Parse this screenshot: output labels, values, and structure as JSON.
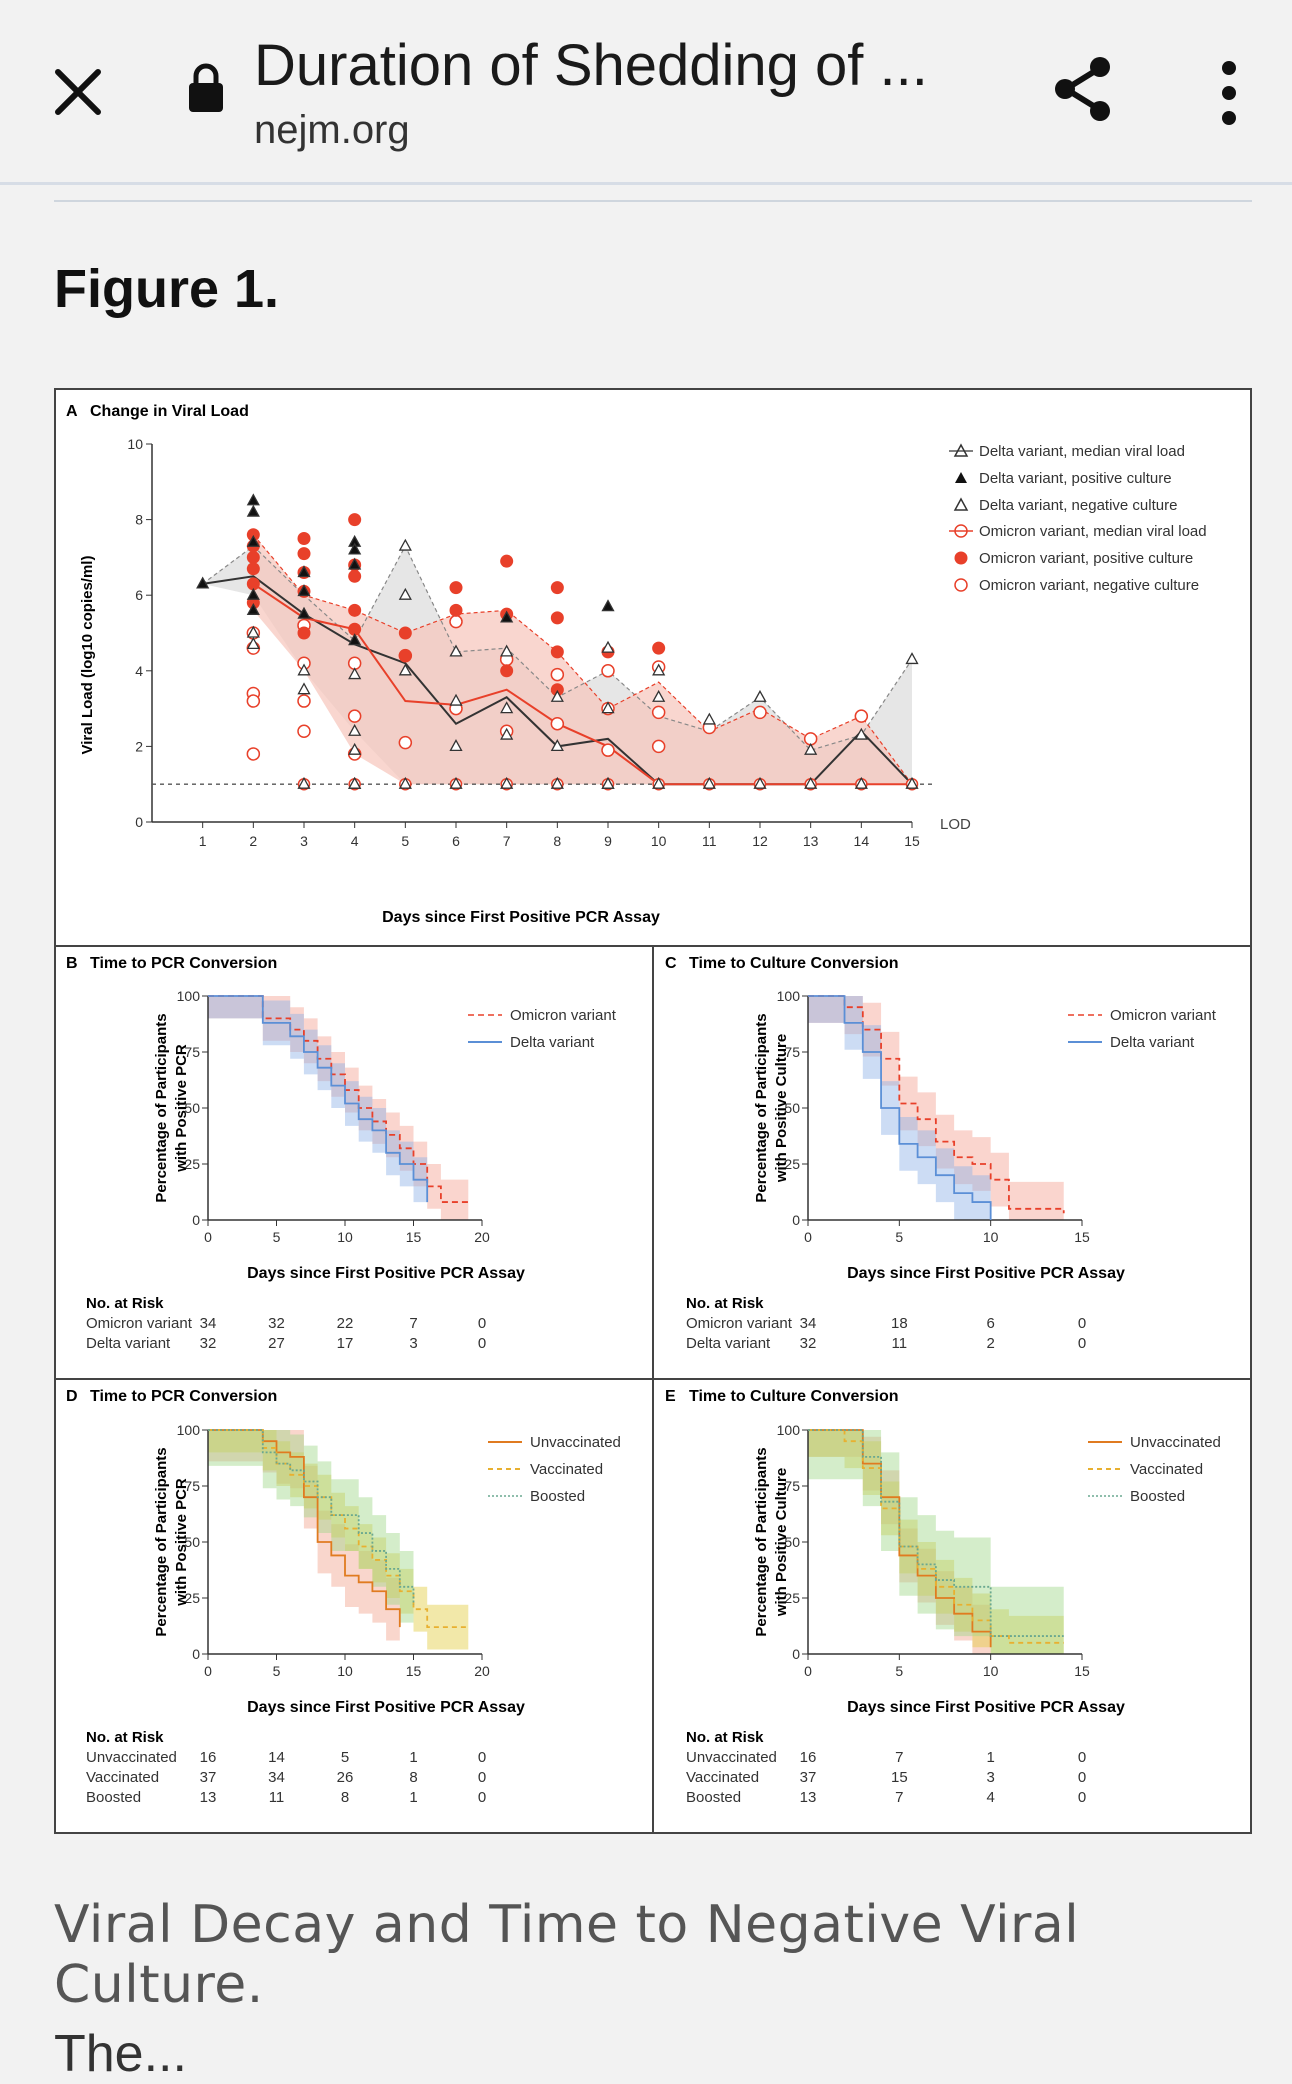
{
  "browser": {
    "title": "Duration of Shedding of ...",
    "domain": "nejm.org",
    "icons": [
      "close-icon",
      "lock-icon",
      "share-icon",
      "more-vert-icon"
    ]
  },
  "page": {
    "figure_heading": "Figure 1.",
    "caption": "Viral Decay and Time to Negative Viral Culture.",
    "cutoff_text": "The..."
  },
  "panels": {
    "a": {
      "label": "A",
      "title": "Change in Viral Load",
      "ylabel": "Viral Load (log10 copies/ml)",
      "xlabel": "Days since First Positive PCR Assay",
      "lod": "LOD",
      "legend": [
        "Delta variant, median viral load",
        "Delta variant, positive culture",
        "Delta variant, negative culture",
        "Omicron variant, median viral load",
        "Omicron variant, positive culture",
        "Omicron variant, negative culture"
      ]
    },
    "b": {
      "label": "B",
      "title": "Time to PCR Conversion",
      "ylabel1": "Percentage of Participants",
      "ylabel2": "with Positive PCR",
      "xlabel": "Days since First Positive PCR Assay",
      "legend": [
        "Omicron variant",
        "Delta variant"
      ],
      "risk_header": "No. at Risk",
      "risk_rows": [
        {
          "name": "Omicron variant",
          "values": [
            "34",
            "32",
            "22",
            "7",
            "0"
          ]
        },
        {
          "name": "Delta variant",
          "values": [
            "32",
            "27",
            "17",
            "3",
            "0"
          ]
        }
      ]
    },
    "c": {
      "label": "C",
      "title": "Time to Culture Conversion",
      "ylabel1": "Percentage of Participants",
      "ylabel2": "with Positive Culture",
      "xlabel": "Days since First Positive PCR Assay",
      "legend": [
        "Omicron variant",
        "Delta variant"
      ],
      "risk_header": "No. at Risk",
      "risk_rows": [
        {
          "name": "Omicron variant",
          "values": [
            "34",
            "18",
            "6",
            "0"
          ]
        },
        {
          "name": "Delta variant",
          "values": [
            "32",
            "11",
            "2",
            "0"
          ]
        }
      ]
    },
    "d": {
      "label": "D",
      "title": "Time to PCR Conversion",
      "ylabel1": "Percentage of Participants",
      "ylabel2": "with Positive PCR",
      "xlabel": "Days since First Positive PCR Assay",
      "legend": [
        "Unvaccinated",
        "Vaccinated",
        "Boosted"
      ],
      "risk_header": "No. at Risk",
      "risk_rows": [
        {
          "name": "Unvaccinated",
          "values": [
            "16",
            "14",
            "5",
            "1",
            "0"
          ]
        },
        {
          "name": "Vaccinated",
          "values": [
            "37",
            "34",
            "26",
            "8",
            "0"
          ]
        },
        {
          "name": "Boosted",
          "values": [
            "13",
            "11",
            "8",
            "1",
            "0"
          ]
        }
      ]
    },
    "e": {
      "label": "E",
      "title": "Time to Culture Conversion",
      "ylabel1": "Percentage of Participants",
      "ylabel2": "with Positive Culture",
      "xlabel": "Days since First Positive PCR Assay",
      "legend": [
        "Unvaccinated",
        "Vaccinated",
        "Boosted"
      ],
      "risk_header": "No. at Risk",
      "risk_rows": [
        {
          "name": "Unvaccinated",
          "values": [
            "16",
            "7",
            "1",
            "0"
          ]
        },
        {
          "name": "Vaccinated",
          "values": [
            "37",
            "15",
            "3",
            "0"
          ]
        },
        {
          "name": "Boosted",
          "values": [
            "13",
            "7",
            "4",
            "0"
          ]
        }
      ]
    }
  },
  "colors": {
    "omicron": "#e8402a",
    "omicron_fill": "#f7c4bb",
    "delta": "#222222",
    "delta_fill": "#dcdcdc",
    "blue": "#5b8fd6",
    "unvacc": "#e07b20",
    "vacc": "#e8b030",
    "boosted": "#6aa890"
  },
  "chart_data": [
    {
      "type": "scatter",
      "title": "Change in Viral Load",
      "xlabel": "Days since First Positive PCR Assay",
      "ylabel": "Viral Load (log10 copies/ml)",
      "xlim": [
        0,
        15
      ],
      "ylim": [
        0,
        10
      ],
      "x_ticks": [
        1,
        2,
        3,
        4,
        5,
        6,
        7,
        8,
        9,
        10,
        11,
        12,
        13,
        14,
        15
      ],
      "y_ticks": [
        0,
        2,
        4,
        6,
        8,
        10
      ],
      "lod": 1,
      "series": [
        {
          "name": "Delta variant, median viral load",
          "x": [
            1,
            2,
            3,
            4,
            5,
            6,
            7,
            8,
            9,
            10,
            11,
            12,
            13,
            14,
            15
          ],
          "y": [
            6.3,
            6.5,
            5.5,
            4.7,
            4.2,
            2.6,
            3.3,
            2.0,
            2.2,
            1.0,
            1.0,
            1.0,
            1.0,
            2.4,
            1.0
          ]
        },
        {
          "name": "Omicron variant, median viral load",
          "x": [
            2,
            3,
            4,
            5,
            6,
            7,
            8,
            9,
            10,
            11,
            12,
            13,
            14,
            15
          ],
          "y": [
            6.3,
            5.4,
            5.1,
            3.2,
            3.1,
            3.5,
            2.6,
            2.0,
            1.0,
            1.0,
            1.0,
            1.0,
            1.0,
            1.0
          ]
        },
        {
          "name": "Delta variant, positive culture",
          "x": [
            1,
            2,
            2,
            2,
            2,
            2,
            3,
            3,
            3,
            4,
            4,
            4,
            4,
            7,
            9
          ],
          "y": [
            6.3,
            8.5,
            8.2,
            7.4,
            6.0,
            5.6,
            6.6,
            6.1,
            5.5,
            7.4,
            7.2,
            6.8,
            4.8,
            5.4,
            5.7
          ]
        },
        {
          "name": "Delta variant, negative culture",
          "x": [
            2,
            2,
            3,
            3,
            4,
            4,
            4,
            4,
            5,
            5,
            5,
            6,
            6,
            6,
            7,
            7,
            7,
            8,
            8,
            9,
            9,
            9,
            10,
            10,
            11,
            12,
            13,
            14,
            15
          ],
          "y": [
            5.0,
            4.7,
            4.0,
            3.5,
            3.9,
            2.4,
            1.9,
            1.0,
            7.3,
            6.0,
            4.0,
            4.5,
            3.2,
            2.0,
            4.5,
            3.0,
            2.3,
            3.3,
            2.0,
            4.6,
            3.0,
            1.0,
            4.0,
            3.3,
            2.7,
            3.3,
            1.9,
            2.3,
            4.3
          ]
        },
        {
          "name": "Omicron variant, positive culture",
          "x": [
            2,
            2,
            2,
            2,
            2,
            2,
            3,
            3,
            3,
            3,
            3,
            4,
            4,
            4,
            4,
            4,
            5,
            5,
            6,
            6,
            7,
            7,
            7,
            8,
            8,
            8,
            8,
            9,
            10
          ],
          "y": [
            7.6,
            7.3,
            7.0,
            6.7,
            6.3,
            5.8,
            7.5,
            7.1,
            6.6,
            6.1,
            5.0,
            8.0,
            6.8,
            6.5,
            5.6,
            5.1,
            5.0,
            4.4,
            6.2,
            5.6,
            6.9,
            5.5,
            4.0,
            6.2,
            5.4,
            4.5,
            3.5,
            4.5,
            4.6
          ]
        },
        {
          "name": "Omicron variant, negative culture",
          "x": [
            2,
            2,
            2,
            2,
            2,
            3,
            3,
            3,
            3,
            4,
            4,
            4,
            5,
            5,
            6,
            6,
            7,
            7,
            8,
            8,
            9,
            9,
            9,
            10,
            10,
            10,
            11,
            12,
            13,
            14
          ],
          "y": [
            5.0,
            4.6,
            3.4,
            3.2,
            1.8,
            5.2,
            4.2,
            3.2,
            2.4,
            4.2,
            2.8,
            1.8,
            4.4,
            2.1,
            5.3,
            3.0,
            4.3,
            2.4,
            3.9,
            2.6,
            4.0,
            3.0,
            1.9,
            4.1,
            2.9,
            2.0,
            2.5,
            2.9,
            2.2,
            2.8
          ]
        }
      ]
    },
    {
      "type": "line",
      "title": "Time to PCR Conversion (B)",
      "xlabel": "Days since First Positive PCR Assay",
      "ylabel": "Percentage of Participants with Positive PCR",
      "xlim": [
        0,
        20
      ],
      "ylim": [
        0,
        100
      ],
      "x_ticks": [
        0,
        5,
        10,
        15,
        20
      ],
      "y_ticks": [
        0,
        25,
        50,
        75,
        100
      ],
      "series": [
        {
          "name": "Omicron variant",
          "x": [
            0,
            3,
            4,
            6,
            7,
            8,
            9,
            10,
            11,
            12,
            13,
            14,
            15,
            16,
            17,
            19
          ],
          "y": [
            100,
            100,
            90,
            85,
            80,
            72,
            65,
            58,
            50,
            44,
            38,
            32,
            25,
            15,
            8,
            8
          ]
        },
        {
          "name": "Delta variant",
          "x": [
            0,
            3,
            4,
            6,
            7,
            8,
            9,
            10,
            11,
            12,
            13,
            14,
            15,
            16
          ],
          "y": [
            100,
            100,
            88,
            82,
            75,
            68,
            60,
            52,
            45,
            40,
            30,
            25,
            18,
            8
          ]
        }
      ]
    },
    {
      "type": "line",
      "title": "Time to Culture Conversion (C)",
      "xlabel": "Days since First Positive PCR Assay",
      "ylabel": "Percentage of Participants with Positive Culture",
      "xlim": [
        0,
        15
      ],
      "ylim": [
        0,
        100
      ],
      "x_ticks": [
        0,
        5,
        10,
        15
      ],
      "y_ticks": [
        0,
        25,
        50,
        75,
        100
      ],
      "series": [
        {
          "name": "Omicron variant",
          "x": [
            0,
            1,
            2,
            3,
            4,
            5,
            6,
            7,
            8,
            9,
            10,
            11,
            14
          ],
          "y": [
            100,
            100,
            95,
            85,
            72,
            52,
            45,
            35,
            28,
            25,
            18,
            5,
            3
          ]
        },
        {
          "name": "Delta variant",
          "x": [
            0,
            1,
            2,
            3,
            4,
            5,
            6,
            7,
            8,
            9,
            10
          ],
          "y": [
            100,
            100,
            88,
            75,
            50,
            34,
            28,
            20,
            12,
            8,
            0
          ]
        }
      ]
    },
    {
      "type": "line",
      "title": "Time to PCR Conversion (D)",
      "xlabel": "Days since First Positive PCR Assay",
      "ylabel": "Percentage of Participants with Positive PCR",
      "xlim": [
        0,
        20
      ],
      "ylim": [
        0,
        100
      ],
      "x_ticks": [
        0,
        5,
        10,
        15,
        20
      ],
      "y_ticks": [
        0,
        25,
        50,
        75,
        100
      ],
      "series": [
        {
          "name": "Unvaccinated",
          "x": [
            0,
            3,
            4,
            5,
            6,
            7,
            8,
            9,
            10,
            11,
            12,
            13,
            14
          ],
          "y": [
            100,
            100,
            95,
            90,
            88,
            70,
            50,
            44,
            35,
            32,
            28,
            20,
            12
          ]
        },
        {
          "name": "Vaccinated",
          "x": [
            0,
            3,
            4,
            5,
            6,
            7,
            8,
            9,
            10,
            11,
            12,
            13,
            14,
            15,
            16,
            19
          ],
          "y": [
            100,
            100,
            92,
            85,
            80,
            75,
            70,
            62,
            56,
            48,
            42,
            35,
            28,
            20,
            12,
            12
          ]
        },
        {
          "name": "Boosted",
          "x": [
            0,
            3,
            4,
            5,
            6,
            7,
            8,
            9,
            10,
            11,
            12,
            13,
            14,
            15
          ],
          "y": [
            100,
            100,
            90,
            85,
            82,
            77,
            70,
            62,
            62,
            54,
            46,
            38,
            30,
            22
          ]
        }
      ]
    },
    {
      "type": "line",
      "title": "Time to Culture Conversion (E)",
      "xlabel": "Days since First Positive PCR Assay",
      "ylabel": "Percentage of Participants with Positive Culture",
      "xlim": [
        0,
        15
      ],
      "ylim": [
        0,
        100
      ],
      "x_ticks": [
        0,
        5,
        10,
        15
      ],
      "y_ticks": [
        0,
        25,
        50,
        75,
        100
      ],
      "series": [
        {
          "name": "Unvaccinated",
          "x": [
            0,
            1,
            2,
            3,
            4,
            5,
            6,
            7,
            8,
            9,
            10
          ],
          "y": [
            100,
            100,
            100,
            85,
            70,
            44,
            35,
            25,
            18,
            10,
            3
          ]
        },
        {
          "name": "Vaccinated",
          "x": [
            0,
            1,
            2,
            3,
            4,
            5,
            6,
            7,
            8,
            9,
            10,
            11,
            14
          ],
          "y": [
            100,
            100,
            95,
            83,
            65,
            48,
            38,
            30,
            22,
            15,
            8,
            5,
            5
          ]
        },
        {
          "name": "Boosted",
          "x": [
            0,
            1,
            2,
            3,
            4,
            5,
            6,
            7,
            8,
            9,
            10,
            11,
            14
          ],
          "y": [
            100,
            100,
            100,
            88,
            68,
            48,
            40,
            33,
            30,
            30,
            8,
            8,
            8
          ]
        }
      ]
    }
  ]
}
